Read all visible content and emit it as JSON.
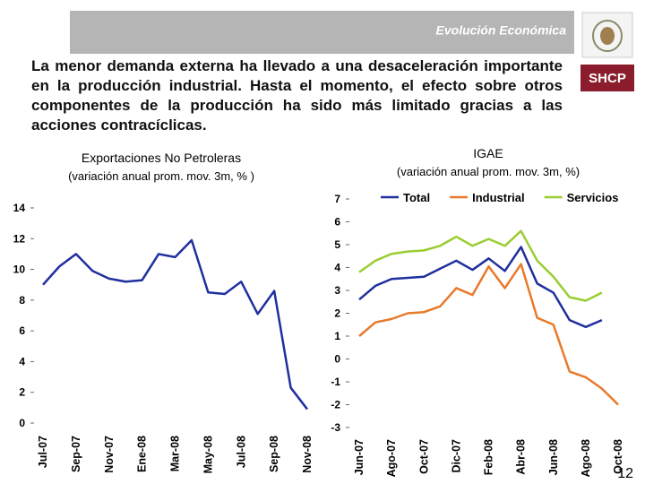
{
  "header": {
    "title": "Evolución Económica",
    "logo": "SHCP"
  },
  "body": "La menor demanda externa ha llevado a una desaceleración importante en la producción industrial. Hasta el momento, el efecto sobre otros componentes de la producción ha sido más limitado gracias a las acciones contracíclicas.",
  "page_number": "12",
  "chart_data": [
    {
      "type": "line",
      "title": "Exportaciones No Petroleras",
      "subtitle": "(variación anual prom. mov. 3m, % )",
      "categories": [
        "Jul-07",
        null,
        "Sep-07",
        null,
        "Nov-07",
        null,
        "Ene-08",
        null,
        "Mar-08",
        null,
        "May-08",
        null,
        "Jul-08",
        null,
        "Sep-08",
        null,
        "Nov-08"
      ],
      "series": [
        {
          "color": "#1f2f9e",
          "values": [
            9.0,
            10.2,
            11.0,
            9.9,
            9.4,
            9.2,
            9.3,
            11.0,
            10.8,
            11.9,
            8.5,
            8.4,
            9.2,
            7.1,
            8.6,
            2.3,
            0.9
          ]
        }
      ],
      "ylim": [
        0,
        14
      ],
      "yticks": [
        0,
        2,
        4,
        6,
        8,
        10,
        12,
        14
      ]
    },
    {
      "type": "line",
      "title": "IGAE",
      "subtitle": "(variación anual prom. mov. 3m, %)",
      "categories": [
        "Jun-07",
        null,
        "Ago-07",
        null,
        "Oct-07",
        null,
        "Dic-07",
        null,
        "Feb-08",
        null,
        "Abr-08",
        null,
        "Jun-08",
        null,
        "Ago-08",
        null,
        "Oct-08"
      ],
      "series": [
        {
          "name": "Total",
          "color": "#1f2f9e",
          "values": [
            2.6,
            3.2,
            3.5,
            3.55,
            3.6,
            3.95,
            4.3,
            3.9,
            4.4,
            3.85,
            4.9,
            3.3,
            2.9,
            1.7,
            1.4,
            1.7,
            null
          ]
        },
        {
          "name": "Industrial",
          "color": "#e8792a",
          "values": [
            1.0,
            1.6,
            1.75,
            2.0,
            2.05,
            2.3,
            3.1,
            2.8,
            4.05,
            3.1,
            4.15,
            1.8,
            1.5,
            -0.55,
            -0.8,
            -1.3,
            -2.0
          ]
        },
        {
          "name": "Servicios",
          "color": "#9acd32",
          "values": [
            3.8,
            4.3,
            4.6,
            4.7,
            4.75,
            4.95,
            5.35,
            4.95,
            5.25,
            4.95,
            5.6,
            4.3,
            3.6,
            2.7,
            2.55,
            2.9,
            null
          ]
        }
      ],
      "ylim": [
        -3,
        7
      ],
      "yticks": [
        -3,
        -2,
        -1,
        0,
        1,
        2,
        3,
        4,
        5,
        6,
        7
      ],
      "legend": "top"
    }
  ]
}
